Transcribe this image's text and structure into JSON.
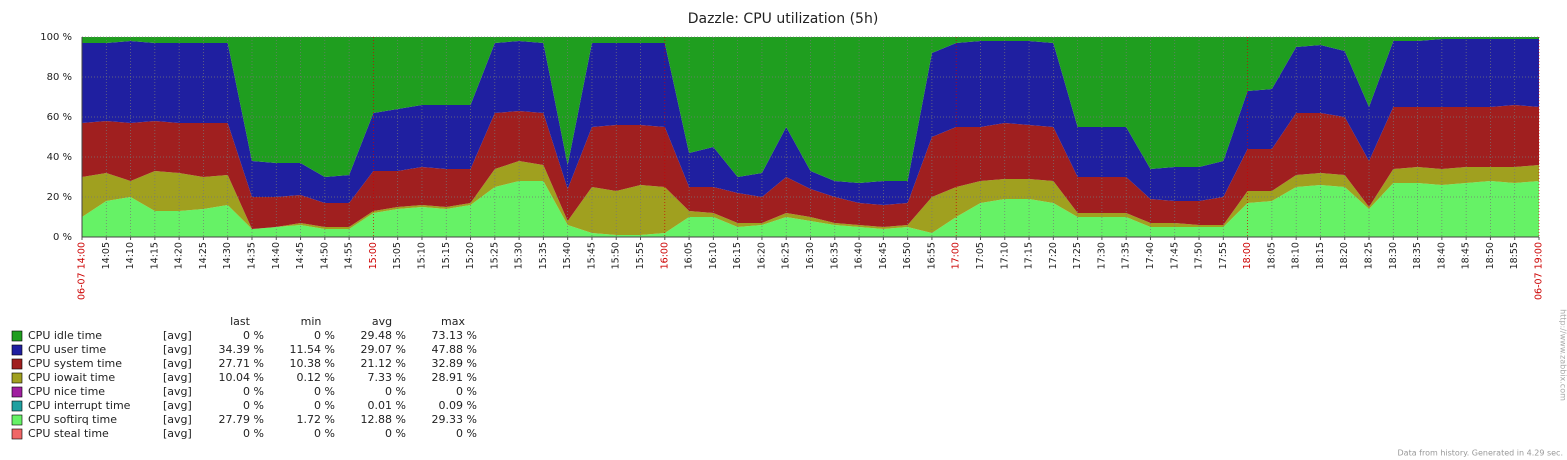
{
  "chart_data": {
    "type": "stacked-area",
    "title": "Dazzle: CPU utilization (5h)",
    "categories": [
      "06-07 14:00",
      "14:05",
      "14:10",
      "14:15",
      "14:20",
      "14:25",
      "14:30",
      "14:35",
      "14:40",
      "14:45",
      "14:50",
      "14:55",
      "15:00",
      "15:05",
      "15:10",
      "15:15",
      "15:20",
      "15:25",
      "15:30",
      "15:35",
      "15:40",
      "15:45",
      "15:50",
      "15:55",
      "16:00",
      "16:05",
      "16:10",
      "16:15",
      "16:20",
      "16:25",
      "16:30",
      "16:35",
      "16:40",
      "16:45",
      "16:50",
      "16:55",
      "17:00",
      "17:05",
      "17:10",
      "17:15",
      "17:20",
      "17:25",
      "17:30",
      "17:35",
      "17:40",
      "17:45",
      "17:50",
      "17:55",
      "18:00",
      "18:05",
      "18:10",
      "18:15",
      "18:20",
      "18:25",
      "18:30",
      "18:35",
      "18:40",
      "18:45",
      "18:50",
      "18:55",
      "06-07 19:00"
    ],
    "series": [
      {
        "name": "CPU idle time",
        "color": "#1f9e1f",
        "values": [
          3,
          3,
          2,
          3,
          3,
          3,
          3,
          62,
          63,
          63,
          70,
          69,
          38,
          36,
          34,
          34,
          34,
          3,
          2,
          3,
          64,
          3,
          3,
          3,
          3,
          58,
          55,
          70,
          68,
          45,
          67,
          72,
          73,
          72,
          72,
          8,
          3,
          2,
          2,
          2,
          3,
          45,
          45,
          45,
          66,
          65,
          65,
          62,
          27,
          26,
          5,
          4,
          7,
          35,
          2,
          2,
          1,
          1,
          1,
          1,
          1
        ]
      },
      {
        "name": "CPU user time",
        "color": "#1f1fa0",
        "values": [
          40,
          39,
          41,
          39,
          40,
          40,
          40,
          18,
          17,
          16,
          13,
          14,
          29,
          31,
          31,
          32,
          32,
          35,
          35,
          35,
          12,
          42,
          41,
          41,
          42,
          17,
          20,
          8,
          12,
          25,
          9,
          8,
          10,
          12,
          11,
          42,
          42,
          43,
          41,
          42,
          42,
          25,
          25,
          25,
          15,
          17,
          17,
          18,
          29,
          30,
          33,
          34,
          33,
          27,
          33,
          33,
          34,
          34,
          34,
          33,
          34
        ]
      },
      {
        "name": "CPU system time",
        "color": "#a01f1f",
        "values": [
          27,
          26,
          29,
          25,
          25,
          27,
          26,
          16,
          15,
          14,
          12,
          12,
          20,
          18,
          19,
          19,
          17,
          28,
          25,
          26,
          16,
          30,
          33,
          30,
          30,
          12,
          13,
          15,
          13,
          18,
          14,
          13,
          11,
          11,
          11,
          30,
          30,
          27,
          28,
          27,
          27,
          18,
          18,
          18,
          12,
          11,
          12,
          14,
          21,
          21,
          31,
          30,
          29,
          23,
          31,
          30,
          31,
          30,
          30,
          31,
          29
        ]
      },
      {
        "name": "CPU iowait time",
        "color": "#a0a01f",
        "values": [
          20,
          14,
          8,
          20,
          19,
          16,
          15,
          0,
          0,
          1,
          1,
          1,
          1,
          1,
          1,
          1,
          1,
          9,
          10,
          8,
          2,
          23,
          22,
          25,
          23,
          3,
          2,
          2,
          1,
          2,
          2,
          1,
          1,
          1,
          1,
          18,
          15,
          11,
          10,
          10,
          11,
          2,
          2,
          2,
          2,
          2,
          1,
          1,
          6,
          5,
          6,
          6,
          6,
          1,
          7,
          8,
          8,
          8,
          7,
          8,
          8
        ]
      },
      {
        "name": "CPU nice time",
        "color": "#a01fa0",
        "values": [
          0,
          0,
          0,
          0,
          0,
          0,
          0,
          0,
          0,
          0,
          0,
          0,
          0,
          0,
          0,
          0,
          0,
          0,
          0,
          0,
          0,
          0,
          0,
          0,
          0,
          0,
          0,
          0,
          0,
          0,
          0,
          0,
          0,
          0,
          0,
          0,
          0,
          0,
          0,
          0,
          0,
          0,
          0,
          0,
          0,
          0,
          0,
          0,
          0,
          0,
          0,
          0,
          0,
          0,
          0,
          0,
          0,
          0,
          0,
          0,
          0
        ]
      },
      {
        "name": "CPU interrupt time",
        "color": "#1fa0a0",
        "values": [
          0,
          0,
          0,
          0,
          0,
          0,
          0,
          0,
          0,
          0,
          0,
          0,
          0,
          0,
          0,
          0,
          0,
          0,
          0,
          0,
          0,
          0,
          0,
          0,
          0,
          0,
          0,
          0,
          0,
          0,
          0,
          0,
          0,
          0,
          0,
          0,
          0,
          0,
          0,
          0,
          0,
          0,
          0,
          0,
          0,
          0,
          0,
          0,
          0,
          0,
          0,
          0,
          0,
          0,
          0,
          0,
          0,
          0,
          0,
          0,
          0
        ]
      },
      {
        "name": "CPU softirq time",
        "color": "#66f266",
        "values": [
          10,
          18,
          20,
          13,
          13,
          14,
          16,
          4,
          5,
          6,
          4,
          4,
          12,
          14,
          15,
          14,
          16,
          25,
          28,
          28,
          6,
          2,
          1,
          1,
          2,
          10,
          10,
          5,
          6,
          10,
          8,
          6,
          5,
          4,
          5,
          2,
          10,
          17,
          19,
          19,
          17,
          10,
          10,
          10,
          5,
          5,
          5,
          5,
          17,
          18,
          25,
          26,
          25,
          14,
          27,
          27,
          26,
          27,
          28,
          27,
          28
        ]
      },
      {
        "name": "CPU steal time",
        "color": "#f06666",
        "values": [
          0,
          0,
          0,
          0,
          0,
          0,
          0,
          0,
          0,
          0,
          0,
          0,
          0,
          0,
          0,
          0,
          0,
          0,
          0,
          0,
          0,
          0,
          0,
          0,
          0,
          0,
          0,
          0,
          0,
          0,
          0,
          0,
          0,
          0,
          0,
          0,
          0,
          0,
          0,
          0,
          0,
          0,
          0,
          0,
          0,
          0,
          0,
          0,
          0,
          0,
          0,
          0,
          0,
          0,
          0,
          0,
          0,
          0,
          0,
          0,
          0
        ]
      }
    ],
    "ylim": [
      0,
      100
    ],
    "yticks": [
      {
        "value": 0,
        "label": "0 %"
      },
      {
        "value": 20,
        "label": "20 %"
      },
      {
        "value": 40,
        "label": "40 %"
      },
      {
        "value": 60,
        "label": "60 %"
      },
      {
        "value": 80,
        "label": "80 %"
      },
      {
        "value": 100,
        "label": "100 %"
      }
    ],
    "grid": true,
    "legend_table": {
      "columns": [
        "last",
        "min",
        "avg",
        "max"
      ],
      "rows": [
        [
          "[avg]",
          "0 %",
          "0 %",
          "29.48 %",
          "73.13 %"
        ],
        [
          "[avg]",
          "34.39 %",
          "11.54 %",
          "29.07 %",
          "47.88 %"
        ],
        [
          "[avg]",
          "27.71 %",
          "10.38 %",
          "21.12 %",
          "32.89 %"
        ],
        [
          "[avg]",
          "10.04 %",
          "0.12 %",
          "7.33 %",
          "28.91 %"
        ],
        [
          "[avg]",
          "0 %",
          "0 %",
          "0 %",
          "0 %"
        ],
        [
          "[avg]",
          "0 %",
          "0 %",
          "0.01 %",
          "0.09 %"
        ],
        [
          "[avg]",
          "27.79 %",
          "1.72 %",
          "12.88 %",
          "29.33 %"
        ],
        [
          "[avg]",
          "0 %",
          "0 %",
          "0 %",
          "0 %"
        ]
      ]
    },
    "watermark": "http://www.zabbix.com",
    "footer": "Data from history. Generated in 4.29 sec."
  }
}
